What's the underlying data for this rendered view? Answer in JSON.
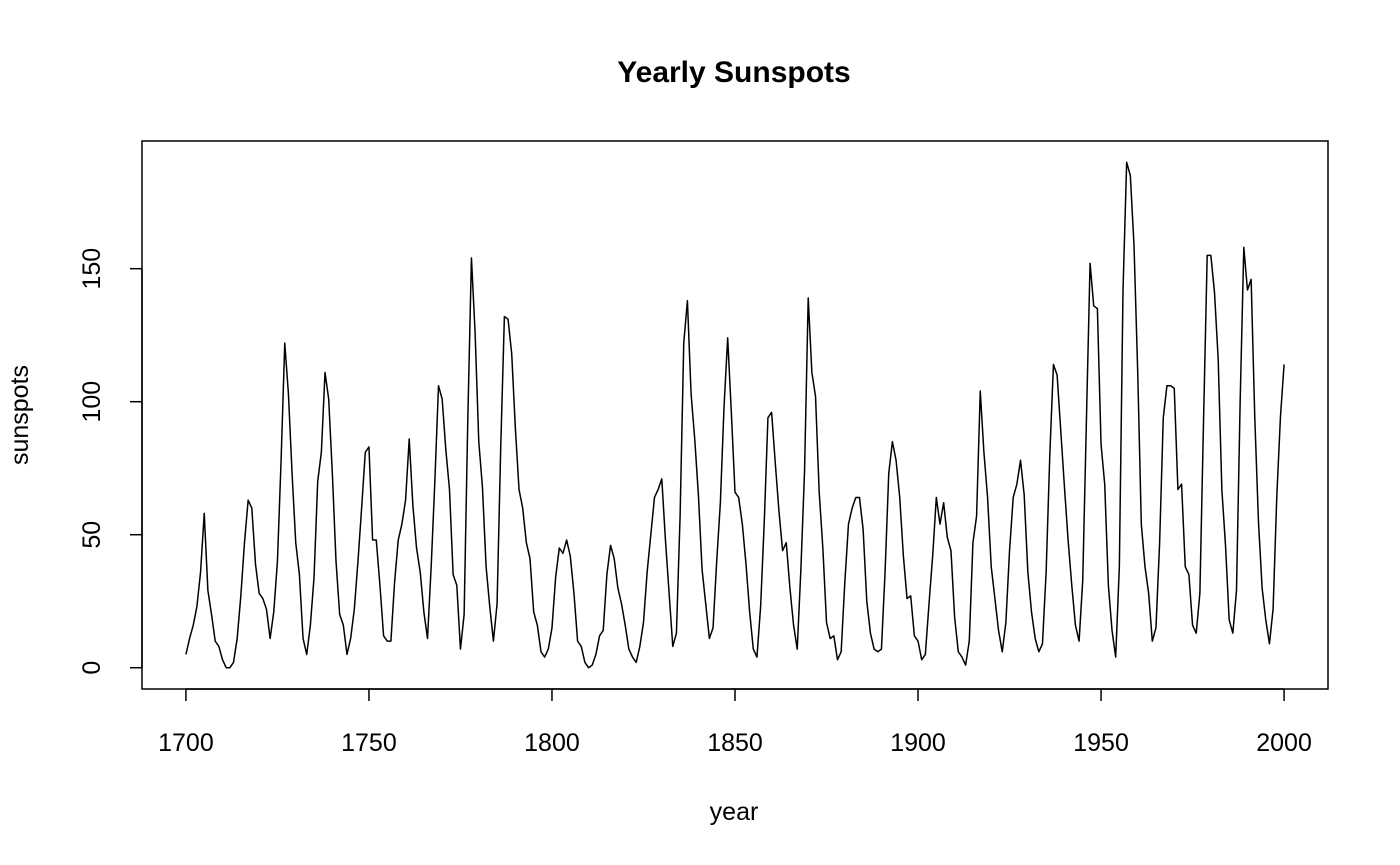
{
  "chart_data": {
    "type": "line",
    "title": "Yearly Sunspots",
    "xlabel": "year",
    "ylabel": "sunspots",
    "xlim": [
      1688,
      2012
    ],
    "ylim": [
      -8,
      198
    ],
    "x_ticks": [
      1700,
      1750,
      1800,
      1850,
      1900,
      1950,
      2000
    ],
    "y_ticks": [
      0,
      50,
      100,
      150
    ],
    "grid": false,
    "legend": "none",
    "line_color": "#000000",
    "x_start": 1700,
    "series": [
      {
        "values": [
          5,
          11,
          16,
          23,
          36,
          58,
          29,
          20,
          10,
          8,
          3,
          0,
          0,
          2,
          11,
          27,
          47,
          63,
          60,
          39,
          28,
          26,
          22,
          11,
          21,
          40,
          78,
          122,
          103,
          73,
          47,
          35,
          11,
          5,
          16,
          34,
          70,
          81,
          111,
          101,
          73,
          40,
          20,
          16,
          5,
          11,
          22,
          40,
          60,
          81,
          83,
          48,
          48,
          31,
          12,
          10,
          10,
          32,
          48,
          54,
          63,
          86,
          61,
          45,
          36,
          21,
          11,
          38,
          70,
          106,
          101,
          82,
          67,
          35,
          31,
          7,
          20,
          93,
          154,
          126,
          85,
          68,
          38,
          23,
          10,
          24,
          83,
          132,
          131,
          118,
          90,
          67,
          60,
          47,
          41,
          21,
          16,
          6,
          4,
          7,
          15,
          34,
          45,
          43,
          48,
          42,
          28,
          10,
          8,
          2,
          0,
          1,
          5,
          12,
          14,
          35,
          46,
          41,
          30,
          24,
          16,
          7,
          4,
          2,
          8,
          17,
          36,
          50,
          64,
          67,
          71,
          48,
          28,
          8,
          13,
          57,
          122,
          138,
          103,
          86,
          65,
          37,
          24,
          11,
          15,
          40,
          62,
          98,
          124,
          96,
          66,
          64,
          54,
          39,
          21,
          7,
          4,
          23,
          55,
          94,
          96,
          77,
          59,
          44,
          47,
          30,
          16,
          7,
          37,
          74,
          139,
          111,
          102,
          66,
          45,
          17,
          11,
          12,
          3,
          6,
          32,
          54,
          60,
          64,
          64,
          52,
          25,
          13,
          7,
          6,
          7,
          36,
          73,
          85,
          78,
          64,
          42,
          26,
          27,
          12,
          10,
          3,
          5,
          24,
          42,
          64,
          54,
          62,
          49,
          44,
          19,
          6,
          4,
          1,
          10,
          47,
          57,
          104,
          81,
          64,
          38,
          26,
          14,
          6,
          17,
          44,
          64,
          69,
          78,
          65,
          36,
          21,
          11,
          6,
          9,
          36,
          80,
          114,
          110,
          89,
          68,
          48,
          31,
          16,
          10,
          33,
          93,
          152,
          136,
          135,
          84,
          69,
          31,
          14,
          4,
          38,
          142,
          190,
          185,
          159,
          112,
          54,
          38,
          28,
          10,
          15,
          47,
          94,
          106,
          106,
          105,
          67,
          69,
          38,
          35,
          16,
          13,
          28,
          93,
          155,
          155,
          141,
          116,
          67,
          46,
          18,
          13,
          29,
          100,
          158,
          142,
          146,
          94,
          55,
          30,
          18,
          9,
          22,
          64,
          94,
          114
        ]
      }
    ]
  }
}
